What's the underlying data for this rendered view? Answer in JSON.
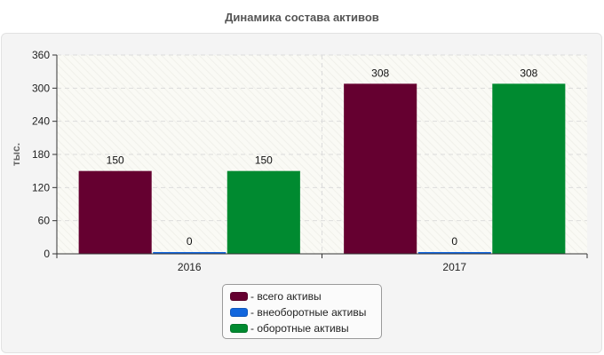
{
  "chart_data": {
    "type": "bar",
    "title": "Динамика состава активов",
    "ylabel": "тыс.",
    "xlabel": "",
    "categories": [
      "2016",
      "2017"
    ],
    "yticks": [
      "0",
      "60",
      "120",
      "180",
      "240",
      "300",
      "360"
    ],
    "ylim": [
      0,
      360
    ],
    "grid": true,
    "legend_placement": "bottom-center",
    "series": [
      {
        "name": "- всего активы",
        "values": [
          150,
          308
        ],
        "labels": [
          "150",
          "308"
        ],
        "color": "#650030"
      },
      {
        "name": "- внеоборотные активы",
        "values": [
          0,
          0
        ],
        "labels": [
          "0",
          "0"
        ],
        "color": "#1166dd"
      },
      {
        "name": "- оборотные активы",
        "values": [
          150,
          308
        ],
        "labels": [
          "150",
          "308"
        ],
        "color": "#008a30"
      }
    ]
  }
}
